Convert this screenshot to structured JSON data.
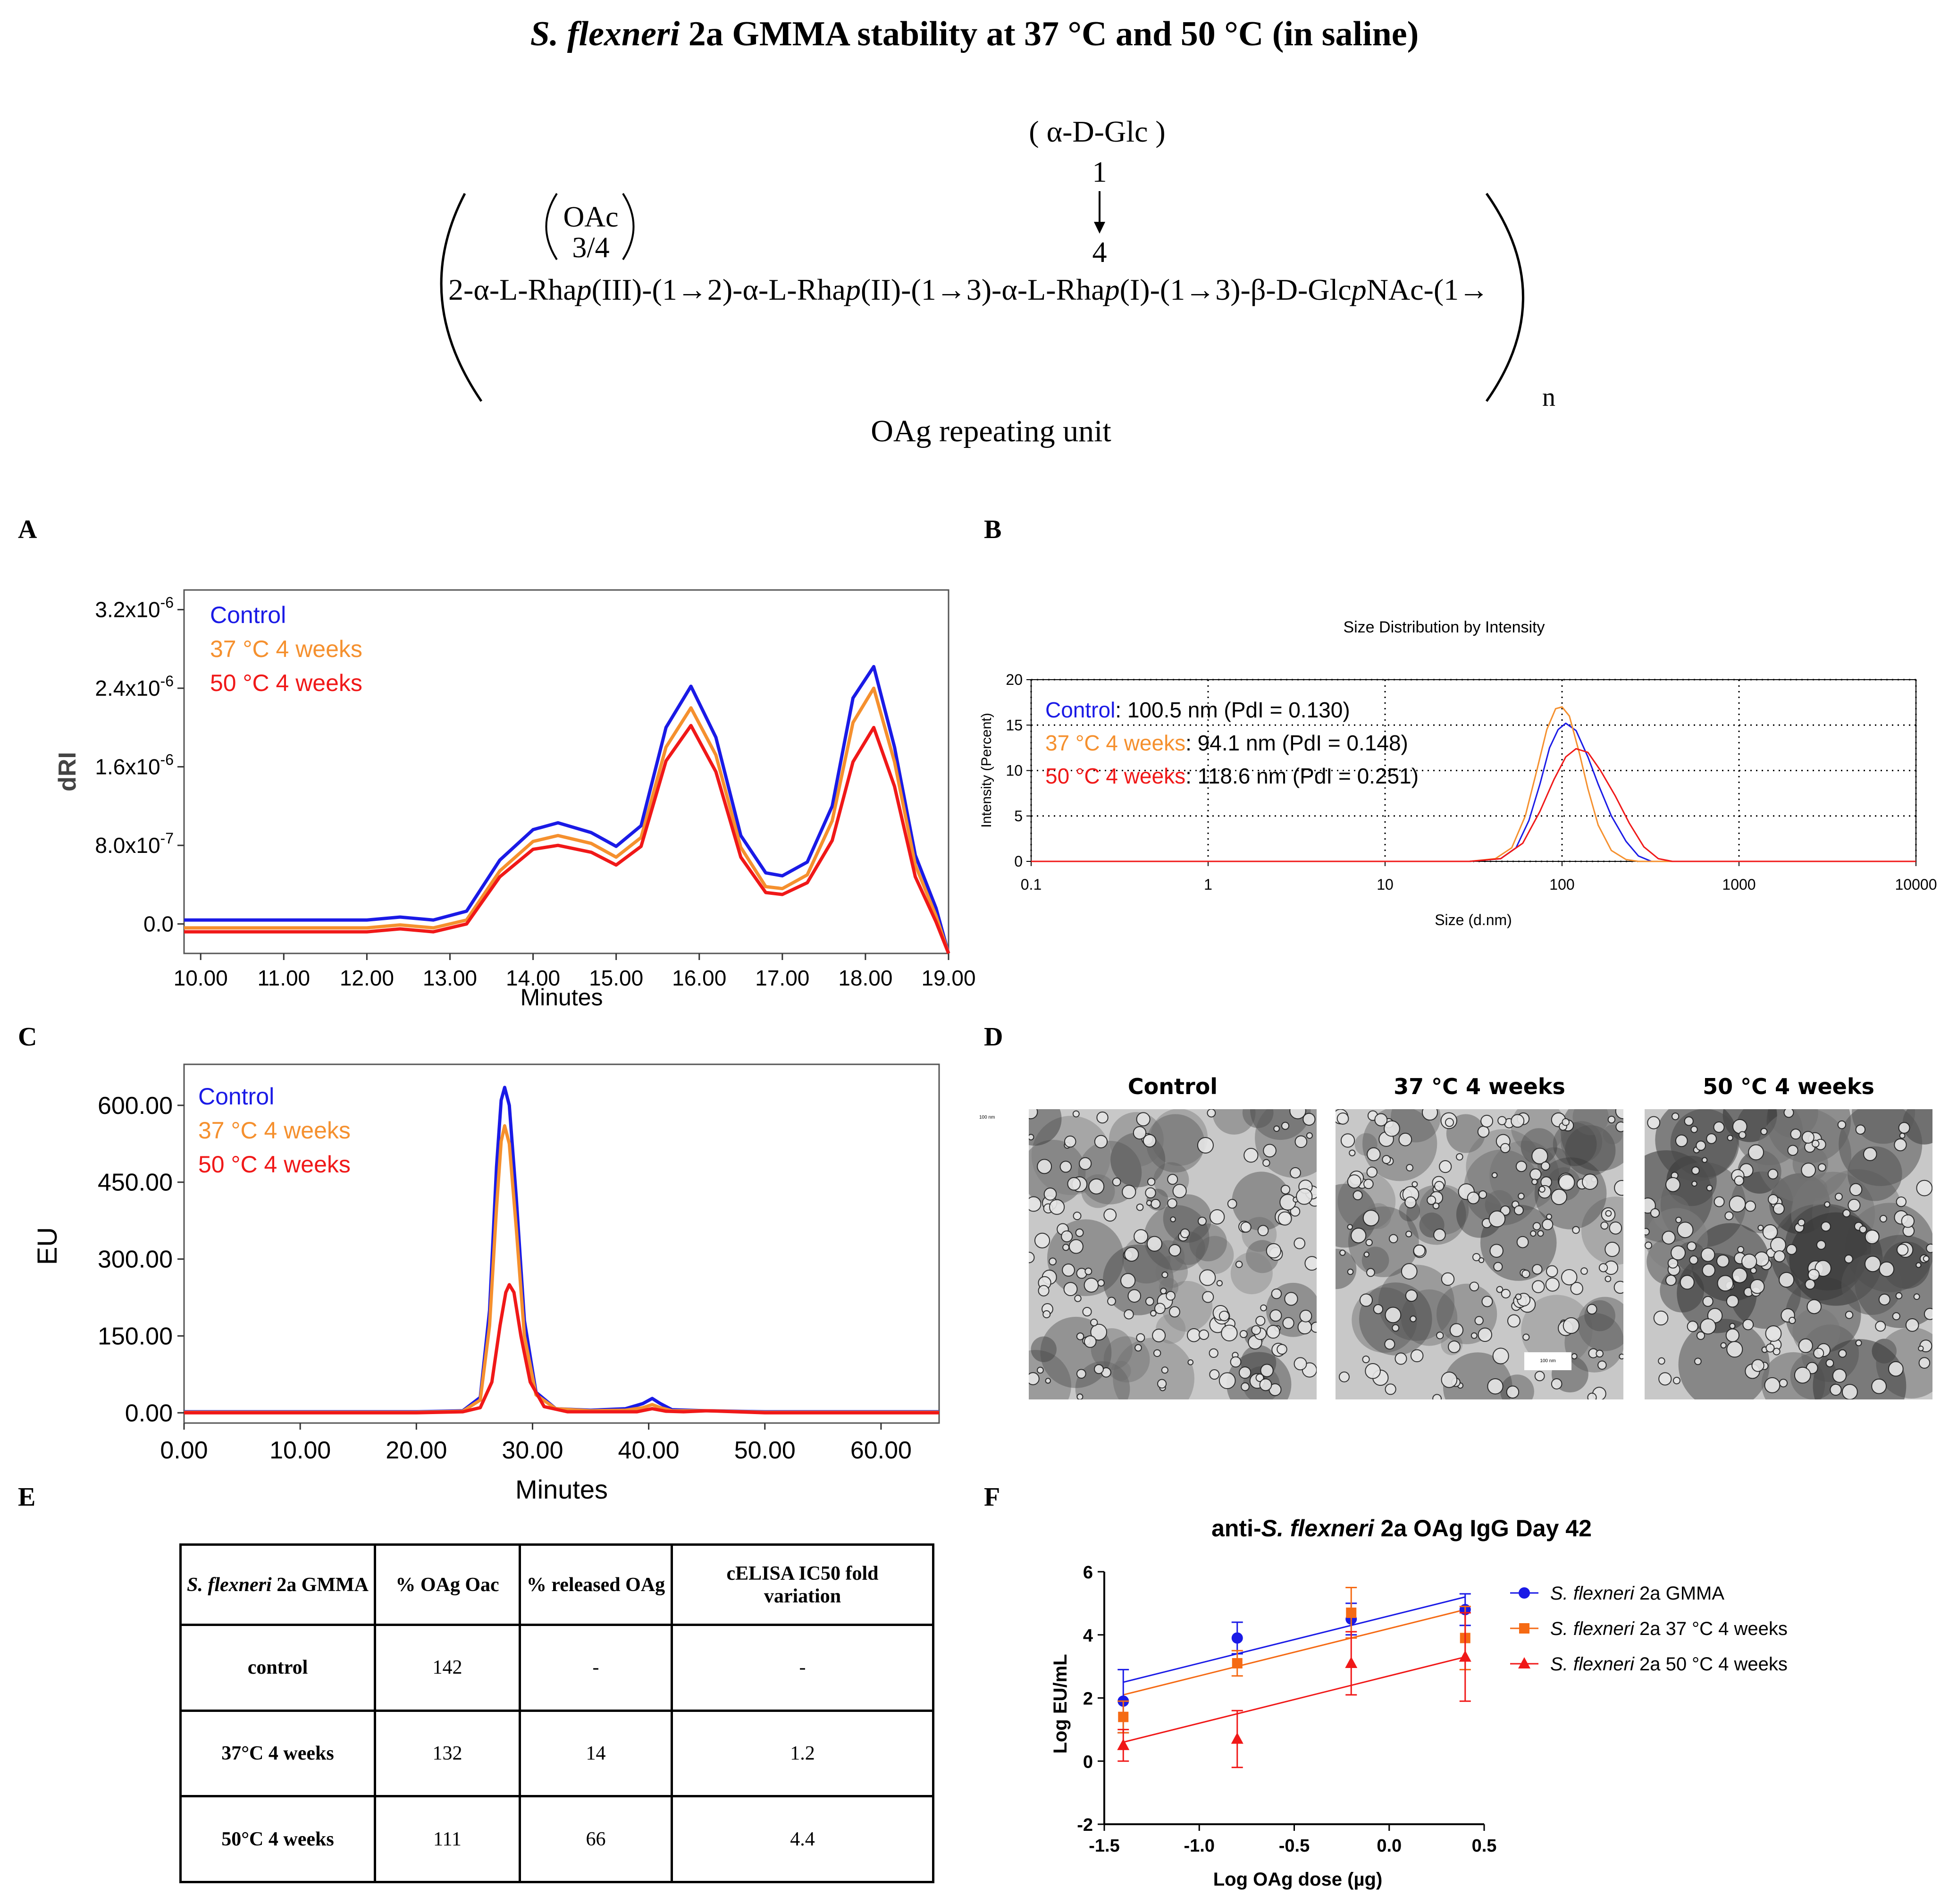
{
  "figure": {
    "title_italic": "S. flexneri",
    "title_rest": "2a GMMA stability at 37 °C and 50 °C (in saline)"
  },
  "structure": {
    "branch_glc": "( α-D-Glc )",
    "branch_num_top": "1",
    "branch_num_bottom": "4",
    "oac_label": "OAc",
    "oac_pos": "3/4",
    "chain_seg1": "2-α-L-Rha",
    "chain_p1": "p",
    "chain_seg2": "(III)-(1→2)-α-L-Rha",
    "chain_p2": "p",
    "chain_seg3": "(II)-(1→3)-α-L-Rha",
    "chain_p3": "p",
    "chain_seg4": "(I)-(1→3)-β-D-Glc",
    "chain_p4": "p",
    "chain_seg5": "NAc-(1→",
    "subscript_n": "n",
    "caption": "OAg repeating unit"
  },
  "panel_labels": {
    "a": "A",
    "b": "B",
    "c": "C",
    "d": "D",
    "e": "E",
    "f": "F"
  },
  "legend_series": {
    "control": "Control",
    "c37": "37 °C 4 weeks",
    "c50": "50 °C 4 weeks"
  },
  "colors": {
    "control": "#1a1ae6",
    "c37": "#f5902e",
    "c50": "#f01818",
    "f_c37": "#f56a14"
  },
  "chart_data": [
    {
      "id": "A",
      "type": "line",
      "xlabel": "Minutes",
      "ylabel": "dRI",
      "xlim": [
        9.8,
        19.0
      ],
      "ylim": [
        -3e-07,
        3.4e-06
      ],
      "x_ticks": [
        "10.00",
        "11.00",
        "12.00",
        "13.00",
        "14.00",
        "15.00",
        "16.00",
        "17.00",
        "18.00",
        "19.00"
      ],
      "y_ticks": [
        {
          "value": 0,
          "mant": "0.0",
          "exp": ""
        },
        {
          "value": 8e-07,
          "mant": "8.0x10",
          "exp": "-7"
        },
        {
          "value": 1.6e-06,
          "mant": "1.6x10",
          "exp": "-6"
        },
        {
          "value": 2.4e-06,
          "mant": "2.4x10",
          "exp": "-6"
        },
        {
          "value": 3.2e-06,
          "mant": "3.2x10",
          "exp": "-6"
        }
      ],
      "series": [
        {
          "name": "Control",
          "x": [
            9.8,
            11.0,
            12.0,
            12.4,
            12.8,
            13.2,
            13.6,
            14.0,
            14.3,
            14.7,
            15.0,
            15.3,
            15.6,
            15.9,
            16.2,
            16.5,
            16.8,
            17.0,
            17.3,
            17.6,
            17.85,
            18.1,
            18.35,
            18.6,
            18.85,
            19.0
          ],
          "y": [
            4e-08,
            4e-08,
            4e-08,
            7e-08,
            4e-08,
            1.3e-07,
            6.5e-07,
            9.6e-07,
            1.03e-06,
            9.3e-07,
            7.9e-07,
            1e-06,
            2e-06,
            2.42e-06,
            1.9e-06,
            9e-07,
            5.2e-07,
            4.9e-07,
            6.3e-07,
            1.2e-06,
            2.3e-06,
            2.62e-06,
            1.8e-06,
            7e-07,
            1.6e-07,
            -3e-07
          ]
        },
        {
          "name": "37 °C 4 weeks",
          "x": [
            9.8,
            11.0,
            12.0,
            12.4,
            12.8,
            13.2,
            13.6,
            14.0,
            14.3,
            14.7,
            15.0,
            15.3,
            15.6,
            15.9,
            16.2,
            16.5,
            16.8,
            17.0,
            17.3,
            17.6,
            17.85,
            18.1,
            18.35,
            18.6,
            18.85,
            19.0
          ],
          "y": [
            -4e-08,
            -4e-08,
            -4e-08,
            -1e-08,
            -4e-08,
            4e-08,
            5.4e-07,
            8.4e-07,
            9e-07,
            8.2e-07,
            6.8e-07,
            8.8e-07,
            1.8e-06,
            2.2e-06,
            1.72e-06,
            7.8e-07,
            3.8e-07,
            3.6e-07,
            5e-07,
            1.05e-06,
            2.05e-06,
            2.4e-06,
            1.65e-06,
            6e-07,
            8e-08,
            -3e-07
          ]
        },
        {
          "name": "50 °C 4 weeks",
          "x": [
            9.8,
            11.0,
            12.0,
            12.4,
            12.8,
            13.2,
            13.6,
            14.0,
            14.3,
            14.7,
            15.0,
            15.3,
            15.6,
            15.9,
            16.2,
            16.5,
            16.8,
            17.0,
            17.3,
            17.6,
            17.85,
            18.1,
            18.35,
            18.6,
            18.85,
            19.0
          ],
          "y": [
            -8e-08,
            -8e-08,
            -8e-08,
            -5e-08,
            -8e-08,
            0,
            4.8e-07,
            7.6e-07,
            8e-07,
            7.3e-07,
            6e-07,
            7.9e-07,
            1.66e-06,
            2.02e-06,
            1.55e-06,
            6.8e-07,
            3.2e-07,
            3e-07,
            4.2e-07,
            8.5e-07,
            1.65e-06,
            2e-06,
            1.4e-06,
            4.8e-07,
            2e-08,
            -3e-07
          ]
        }
      ]
    },
    {
      "id": "B",
      "type": "line",
      "title": "Size Distribution by Intensity",
      "xlabel": "Size (d.nm)",
      "ylabel": "Intensity (Percent)",
      "xscale": "log",
      "xlim": [
        0.1,
        10000
      ],
      "ylim": [
        0,
        20
      ],
      "x_ticks": [
        "0.1",
        "1",
        "10",
        "100",
        "1000",
        "10000"
      ],
      "y_ticks": [
        "0",
        "5",
        "10",
        "15",
        "20"
      ],
      "annotations": [
        {
          "series": "Control",
          "text": ": 100.5 nm (PdI = 0.130)"
        },
        {
          "series": "37 °C 4 weeks",
          "text": ": 94.1 nm (PdI = 0.148)"
        },
        {
          "series": "50 °C 4 weeks",
          "text": ": 118.6 nm (PdI = 0.251)"
        }
      ],
      "series": [
        {
          "name": "Control",
          "x": [
            0.1,
            30,
            45,
            55,
            65,
            75,
            85,
            95,
            105,
            120,
            140,
            160,
            190,
            230,
            270,
            320,
            10000
          ],
          "y": [
            0,
            0,
            0.3,
            1.5,
            4.5,
            8.5,
            12.5,
            14.5,
            15.2,
            14.4,
            11.5,
            8.5,
            5.0,
            2.2,
            0.6,
            0,
            0
          ]
        },
        {
          "name": "37 °C 4 weeks",
          "x": [
            0.1,
            30,
            42,
            52,
            62,
            72,
            82,
            92,
            100,
            110,
            125,
            140,
            160,
            190,
            230,
            270,
            10000
          ],
          "y": [
            0,
            0,
            0.3,
            1.5,
            5.0,
            10.0,
            14.5,
            16.8,
            17.0,
            16.0,
            12.0,
            8.0,
            4.0,
            1.2,
            0.2,
            0,
            0
          ]
        },
        {
          "name": "50 °C 4 weeks",
          "x": [
            0.1,
            30,
            45,
            60,
            75,
            90,
            105,
            120,
            140,
            165,
            200,
            240,
            290,
            350,
            420,
            10000
          ],
          "y": [
            0,
            0,
            0.3,
            2.0,
            5.5,
            9.0,
            11.5,
            12.4,
            12.0,
            10.0,
            7.2,
            4.2,
            1.6,
            0.3,
            0,
            0
          ]
        }
      ]
    },
    {
      "id": "C",
      "type": "line",
      "xlabel": "Minutes",
      "ylabel": "EU",
      "xlim": [
        0,
        65
      ],
      "ylim": [
        -20,
        680
      ],
      "x_ticks": [
        "0.00",
        "10.00",
        "20.00",
        "30.00",
        "40.00",
        "50.00",
        "60.00"
      ],
      "y_ticks": [
        "0.00",
        "150.00",
        "300.00",
        "450.00",
        "600.00"
      ],
      "series": [
        {
          "name": "Control",
          "x": [
            0,
            20,
            24,
            25.5,
            26.3,
            26.9,
            27.3,
            27.6,
            28.0,
            28.6,
            29.3,
            30.3,
            32,
            35,
            38,
            39.5,
            40.3,
            41,
            42,
            45,
            50,
            65
          ],
          "y": [
            2,
            2,
            4,
            30,
            200,
            480,
            610,
            635,
            600,
            420,
            180,
            40,
            8,
            5,
            8,
            18,
            28,
            18,
            6,
            4,
            2,
            2
          ]
        },
        {
          "name": "37 °C 4 weeks",
          "x": [
            0,
            20,
            24,
            25.5,
            26.3,
            26.9,
            27.3,
            27.6,
            28.0,
            28.6,
            29.3,
            30.3,
            32,
            35,
            38,
            39.5,
            40.3,
            41,
            42,
            45,
            50,
            65
          ],
          "y": [
            1,
            1,
            3,
            25,
            170,
            400,
            530,
            560,
            525,
            360,
            150,
            35,
            8,
            4,
            5,
            10,
            16,
            10,
            4,
            4,
            1,
            1
          ]
        },
        {
          "name": "50 °C 4 weeks",
          "x": [
            0,
            20,
            24,
            25.5,
            26.5,
            27.2,
            27.7,
            28.0,
            28.4,
            29.0,
            29.8,
            31,
            33,
            36,
            39,
            40.3,
            41.5,
            43,
            45,
            50,
            65
          ],
          "y": [
            0,
            0,
            2,
            10,
            60,
            170,
            235,
            250,
            235,
            150,
            60,
            12,
            2,
            2,
            2,
            8,
            3,
            2,
            4,
            0,
            0
          ]
        }
      ]
    },
    {
      "id": "F",
      "type": "scatter",
      "title_pre": "anti-",
      "title_italic": "S. flexneri",
      "title_post": " 2a OAg IgG Day 42",
      "xlabel": "Log OAg dose (µg)",
      "ylabel": "Log EU/mL",
      "xlim": [
        -1.5,
        0.5
      ],
      "ylim": [
        -2,
        6
      ],
      "x_ticks": [
        "-1.5",
        "-1.0",
        "-0.5",
        "0.0",
        "0.5"
      ],
      "y_ticks": [
        "-2",
        "0",
        "2",
        "4",
        "6"
      ],
      "series": [
        {
          "name_italic": "S. flexneri",
          "name_rest": " 2a GMMA",
          "marker": "circle",
          "x": [
            -1.4,
            -0.8,
            -0.2,
            0.4
          ],
          "y": [
            1.9,
            3.9,
            4.5,
            4.8
          ],
          "err": [
            1.0,
            0.5,
            0.5,
            0.5
          ],
          "fit": [
            [
              -1.4,
              2.5
            ],
            [
              0.4,
              5.2
            ]
          ]
        },
        {
          "name_italic": "S. flexneri",
          "name_rest": " 2a 37 °C 4 weeks",
          "marker": "square",
          "x": [
            -1.4,
            -0.8,
            -0.2,
            0.4
          ],
          "y": [
            1.4,
            3.1,
            4.7,
            3.9
          ],
          "err": [
            0.5,
            0.4,
            0.8,
            1.0
          ],
          "fit": [
            [
              -1.4,
              2.1
            ],
            [
              0.4,
              4.8
            ]
          ]
        },
        {
          "name_italic": "S. flexneri",
          "name_rest": " 2a 50 °C 4 weeks",
          "marker": "triangle",
          "x": [
            -1.4,
            -0.8,
            -0.2,
            0.4
          ],
          "y": [
            0.5,
            0.7,
            3.1,
            3.3
          ],
          "err": [
            0.5,
            0.9,
            1.0,
            1.4
          ],
          "fit": [
            [
              -1.4,
              0.6
            ],
            [
              0.4,
              3.3
            ]
          ]
        }
      ]
    }
  ],
  "tem": {
    "titles": [
      "Control",
      "37 °C 4 weeks",
      "50 °C 4 weeks"
    ],
    "scale_label_left": "100 nm",
    "scale_label_mid": "100 nm"
  },
  "table": {
    "headers": {
      "col1_italic": "S. flexneri",
      "col1_rest": " 2a GMMA",
      "col2": "% OAg Oac",
      "col3": "% released OAg",
      "col4": "cELISA IC50 fold variation"
    },
    "rows": [
      [
        "control",
        "142",
        "-",
        "-"
      ],
      [
        "37°C 4 weeks",
        "132",
        "14",
        "1.2"
      ],
      [
        "50°C 4 weeks",
        "111",
        "66",
        "4.4"
      ]
    ]
  }
}
